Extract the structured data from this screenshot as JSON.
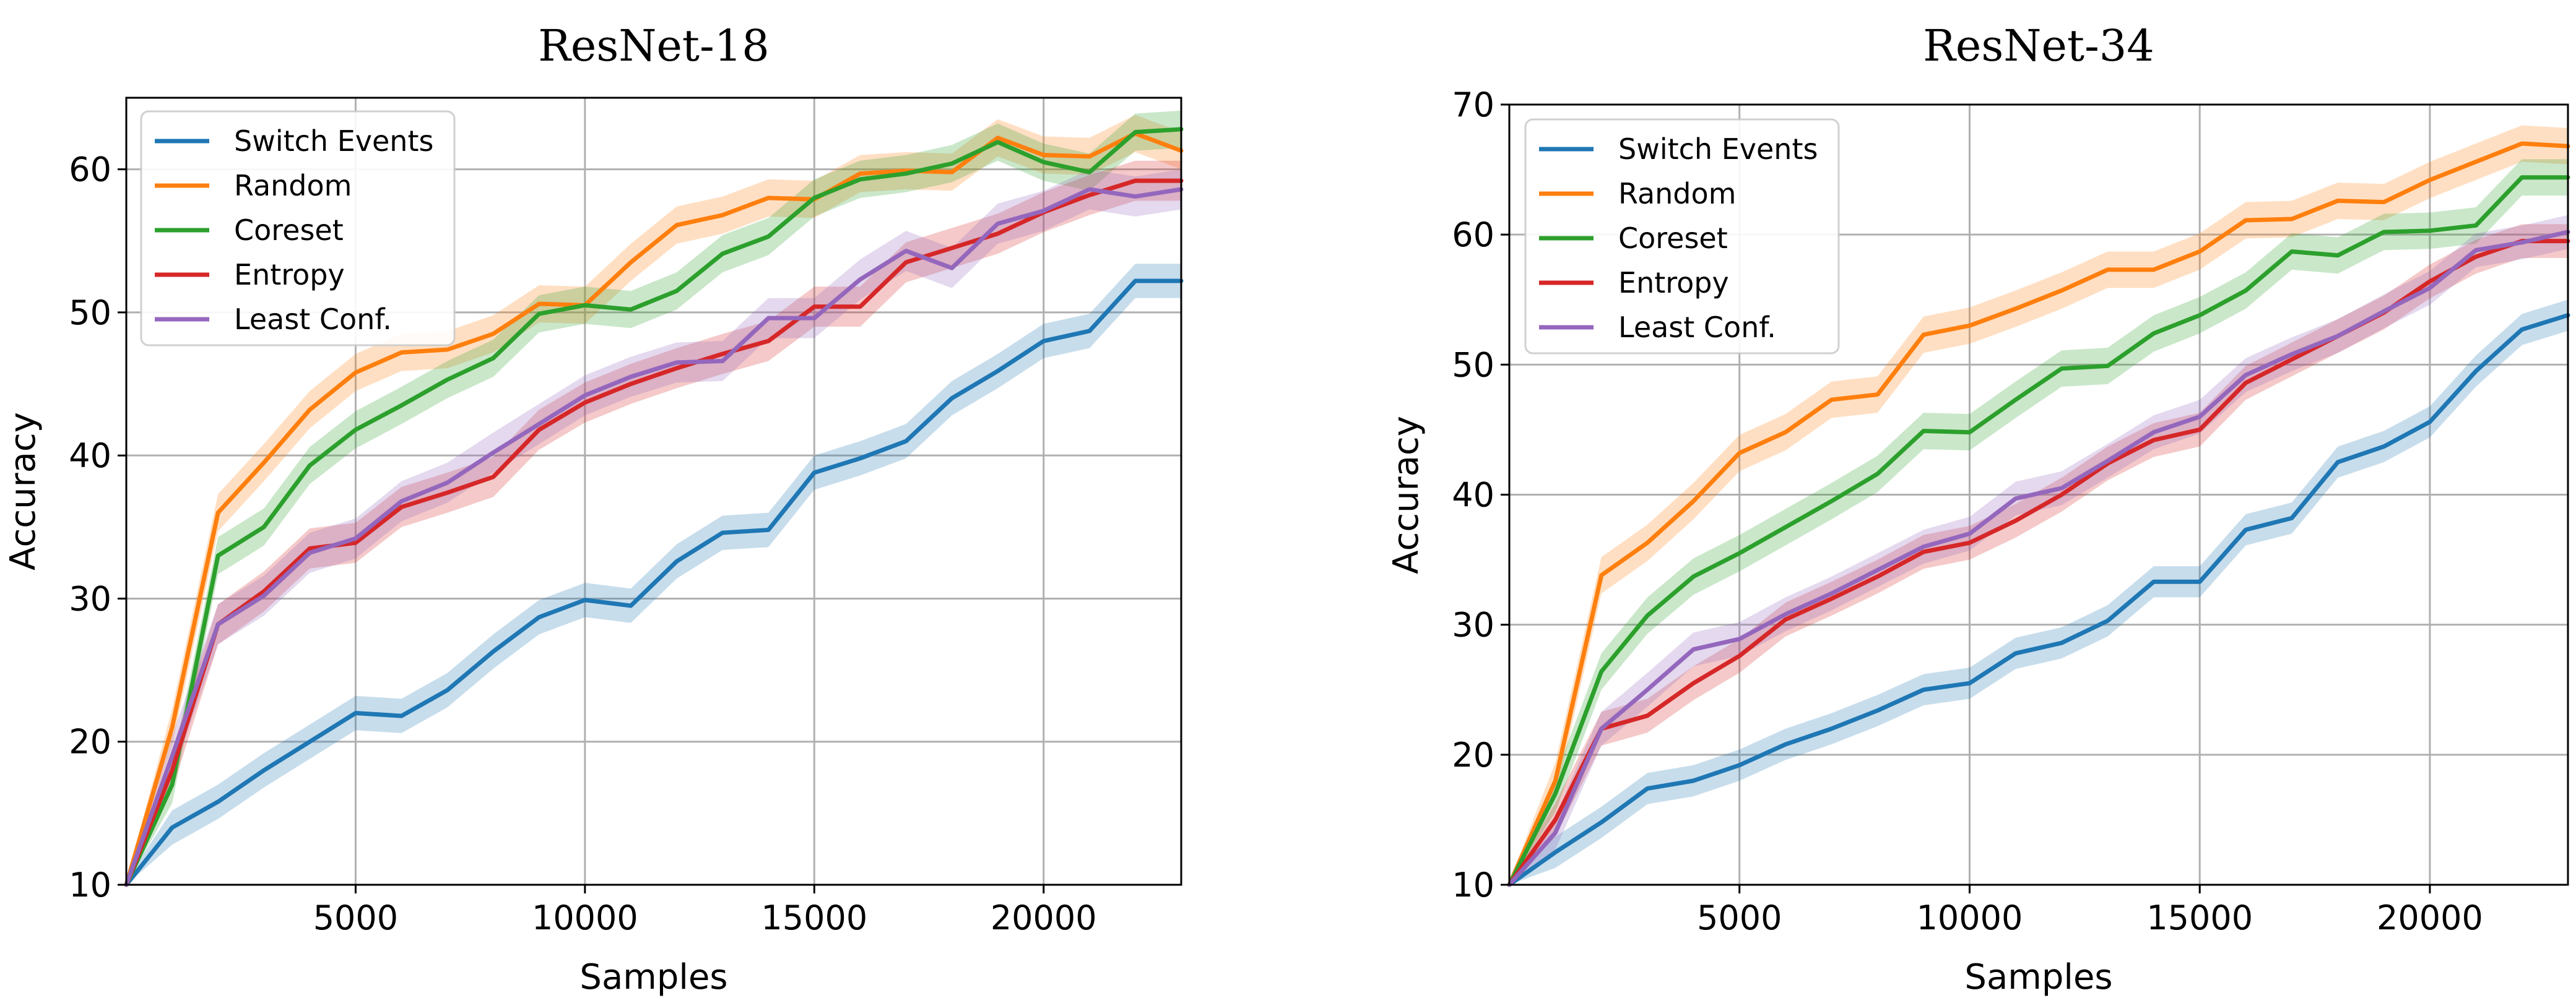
{
  "chart_data": [
    {
      "type": "line",
      "title": "ResNet-18",
      "xlabel": "Samples",
      "ylabel": "Accuracy",
      "xlim": [
        0,
        23000
      ],
      "ylim": [
        10,
        65
      ],
      "xticks": [
        5000,
        10000,
        15000,
        20000
      ],
      "xtick_labels": [
        "5000",
        "10000",
        "15000",
        "20000"
      ],
      "yticks": [
        10,
        20,
        30,
        40,
        50,
        60
      ],
      "ytick_labels": [
        "10",
        "20",
        "30",
        "40",
        "50",
        "60"
      ],
      "grid": true,
      "legend_position": "top-left",
      "x": [
        0,
        1000,
        2000,
        3000,
        4000,
        5000,
        6000,
        7000,
        8000,
        9000,
        10000,
        11000,
        12000,
        13000,
        14000,
        15000,
        16000,
        17000,
        18000,
        19000,
        20000,
        21000,
        22000,
        23000
      ],
      "series": [
        {
          "name": "Switch Events",
          "color": "#1f77b4",
          "values": [
            10,
            14,
            15.8,
            18,
            20,
            22,
            21.8,
            23.6,
            26.3,
            28.7,
            29.9,
            29.5,
            32.6,
            34.6,
            34.8,
            38.8,
            39.8,
            41,
            44,
            45.9,
            48,
            48.7,
            52.2,
            52.2
          ],
          "band": 1.2
        },
        {
          "name": "Random",
          "color": "#ff7f0e",
          "values": [
            10,
            21,
            36,
            39.5,
            43.2,
            45.8,
            47.2,
            47.4,
            48.5,
            50.6,
            50.5,
            53.5,
            56.1,
            56.8,
            58,
            57.9,
            59.7,
            59.9,
            59.8,
            62.2,
            61,
            60.9,
            62.5,
            61.3
          ],
          "band": 1.3
        },
        {
          "name": "Coreset",
          "color": "#2ca02c",
          "values": [
            10,
            17,
            33,
            35,
            39.3,
            41.8,
            43.5,
            45.3,
            46.8,
            49.9,
            50.5,
            50.2,
            51.5,
            54.1,
            55.3,
            58,
            59.3,
            59.7,
            60.4,
            61.9,
            60.5,
            59.8,
            62.6,
            62.8
          ],
          "band": 1.3
        },
        {
          "name": "Entropy",
          "color": "#d62728",
          "values": [
            10,
            18,
            28.2,
            30.5,
            33.5,
            33.9,
            36.4,
            37.4,
            38.5,
            41.8,
            43.7,
            45,
            46.1,
            47.1,
            48,
            50.4,
            50.4,
            53.5,
            54.5,
            55.5,
            57,
            58.2,
            59.2,
            59.2
          ],
          "band": 1.4
        },
        {
          "name": "Least Conf.",
          "color": "#9467bd",
          "values": [
            10,
            19,
            28.2,
            30.2,
            33.2,
            34.2,
            36.8,
            38.1,
            40.2,
            42.2,
            44.2,
            45.5,
            46.5,
            46.6,
            49.6,
            49.6,
            52.3,
            54.3,
            53.1,
            56.2,
            57.1,
            58.6,
            58.1,
            58.6
          ],
          "band": 1.4
        }
      ]
    },
    {
      "type": "line",
      "title": "ResNet-34",
      "xlabel": "Samples",
      "ylabel": "Accuracy",
      "xlim": [
        0,
        23000
      ],
      "ylim": [
        10,
        70
      ],
      "xticks": [
        5000,
        10000,
        15000,
        20000
      ],
      "xtick_labels": [
        "5000",
        "10000",
        "15000",
        "20000"
      ],
      "yticks": [
        10,
        20,
        30,
        40,
        50,
        60,
        70
      ],
      "ytick_labels": [
        "10",
        "20",
        "30",
        "40",
        "50",
        "60",
        "70"
      ],
      "grid": true,
      "legend_position": "top-left",
      "x": [
        0,
        1000,
        2000,
        3000,
        4000,
        5000,
        6000,
        7000,
        8000,
        9000,
        10000,
        11000,
        12000,
        13000,
        14000,
        15000,
        16000,
        17000,
        18000,
        19000,
        20000,
        21000,
        22000,
        23000
      ],
      "series": [
        {
          "name": "Switch Events",
          "color": "#1f77b4",
          "values": [
            10,
            12.5,
            14.8,
            17.4,
            18,
            19.2,
            20.8,
            22,
            23.4,
            25,
            25.5,
            27.8,
            28.6,
            30.3,
            33.3,
            33.3,
            37.3,
            38.2,
            42.5,
            43.7,
            45.6,
            49.5,
            52.7,
            53.8
          ],
          "band": 1.2
        },
        {
          "name": "Random",
          "color": "#ff7f0e",
          "values": [
            10,
            18,
            33.8,
            36.3,
            39.5,
            43.2,
            44.8,
            47.3,
            47.7,
            52.3,
            53,
            54.3,
            55.7,
            57.3,
            57.3,
            58.7,
            61.1,
            61.2,
            62.6,
            62.5,
            64.2,
            65.6,
            67,
            66.8
          ],
          "band": 1.4
        },
        {
          "name": "Coreset",
          "color": "#2ca02c",
          "values": [
            10,
            17,
            26.4,
            30.7,
            33.7,
            35.5,
            37.5,
            39.5,
            41.6,
            44.9,
            44.8,
            47.3,
            49.7,
            49.9,
            52.4,
            53.8,
            55.7,
            58.7,
            58.4,
            60.2,
            60.3,
            60.7,
            64.4,
            64.4
          ],
          "band": 1.4
        },
        {
          "name": "Entropy",
          "color": "#d62728",
          "values": [
            10,
            15,
            22,
            23,
            25.5,
            27.6,
            30.4,
            32,
            33.7,
            35.6,
            36.3,
            38,
            40,
            42.4,
            44.2,
            45,
            48.6,
            50.4,
            52.2,
            54,
            56.4,
            58.3,
            59.5,
            59.5
          ],
          "band": 1.3
        },
        {
          "name": "Least Conf.",
          "color": "#9467bd",
          "values": [
            10,
            14,
            22,
            25,
            28.1,
            28.9,
            30.8,
            32.4,
            34.2,
            36,
            37,
            39.7,
            40.5,
            42.6,
            44.8,
            46,
            49.2,
            50.8,
            52.2,
            54.1,
            55.9,
            58.8,
            59.4,
            60.2
          ],
          "band": 1.3
        }
      ]
    }
  ]
}
